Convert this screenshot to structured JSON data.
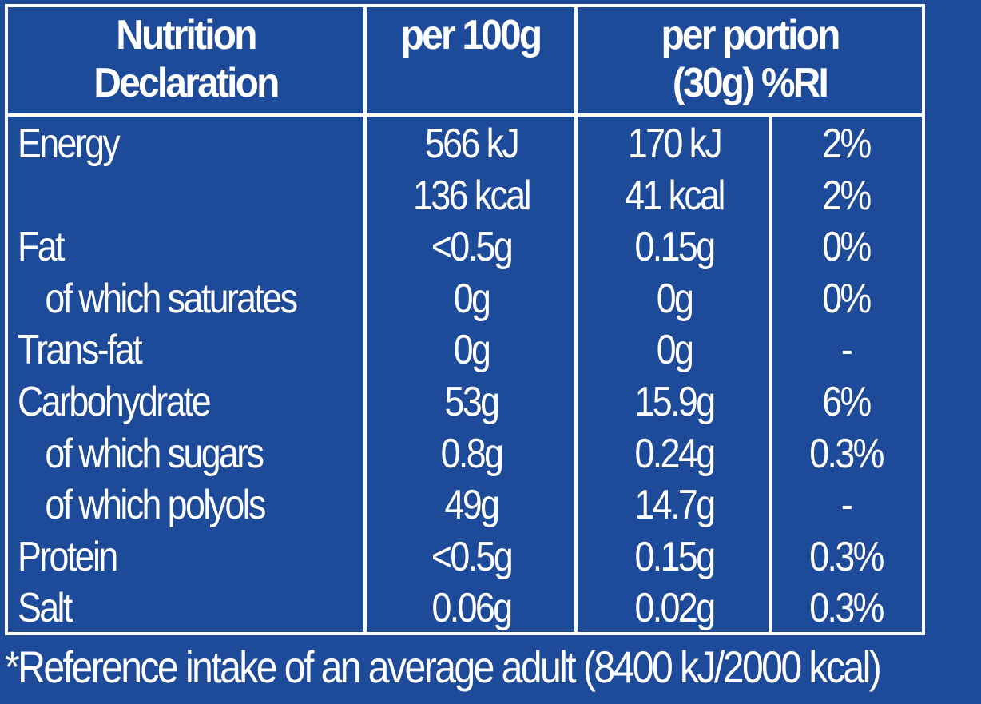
{
  "header": {
    "col1_line1": "Nutrition",
    "col1_line2": "Declaration",
    "col2": "per 100g",
    "col3_line1": "per portion",
    "col3_line2": "(30g) %RI"
  },
  "rows": [
    {
      "label": "Energy",
      "per100": "566 kJ",
      "portion": "170 kJ",
      "ri": "2%"
    },
    {
      "label": "",
      "per100": "136 kcal",
      "portion": "41 kcal",
      "ri": "2%"
    },
    {
      "label": "Fat",
      "per100": "<0.5g",
      "portion": "0.15g",
      "ri": "0%"
    },
    {
      "label": "of which saturates",
      "per100": "0g",
      "portion": "0g",
      "ri": "0%"
    },
    {
      "label": "Trans-fat",
      "per100": "0g",
      "portion": "0g",
      "ri": "-"
    },
    {
      "label": "Carbohydrate",
      "per100": "53g",
      "portion": "15.9g",
      "ri": "6%"
    },
    {
      "label": "of which sugars",
      "per100": "0.8g",
      "portion": "0.24g",
      "ri": "0.3%"
    },
    {
      "label": "of which polyols",
      "per100": "49g",
      "portion": "14.7g",
      "ri": "-"
    },
    {
      "label": "Protein",
      "per100": "<0.5g",
      "portion": "0.15g",
      "ri": "0.3%"
    },
    {
      "label": "Salt",
      "per100": "0.06g",
      "portion": "0.02g",
      "ri": "0.3%"
    }
  ],
  "footnote": "*Reference intake of an average adult (8400 kJ/2000 kcal)",
  "colors": {
    "background": "#1e4a9a",
    "text": "#ffffff"
  }
}
